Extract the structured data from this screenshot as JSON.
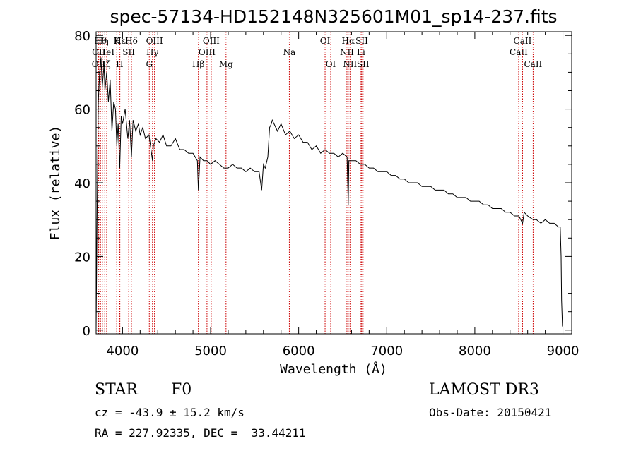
{
  "chart_data": {
    "type": "line",
    "title": "spec-57134-HD152148N325601M01_sp14-237.fits",
    "xlabel": "Wavelength (Å)",
    "ylabel": "Flux (relative)",
    "xlim": [
      3700,
      9100
    ],
    "ylim": [
      -1,
      81
    ],
    "xticks": [
      4000,
      5000,
      6000,
      7000,
      8000,
      9000
    ],
    "yticks": [
      0,
      20,
      40,
      60,
      80
    ],
    "grid": false,
    "series": [
      {
        "x": [
          3700,
          3710,
          3725,
          3740,
          3755,
          3770,
          3790,
          3800,
          3820,
          3840,
          3860,
          3880,
          3900,
          3920,
          3935,
          3950,
          3968,
          3985,
          4000,
          4030,
          4060,
          4080,
          4101,
          4120,
          4150,
          4180,
          4200,
          4230,
          4260,
          4300,
          4340,
          4350,
          4380,
          4420,
          4460,
          4500,
          4550,
          4600,
          4650,
          4700,
          4750,
          4800,
          4850,
          4861,
          4880,
          4920,
          4960,
          5000,
          5050,
          5100,
          5150,
          5200,
          5250,
          5300,
          5350,
          5400,
          5450,
          5500,
          5550,
          5580,
          5600,
          5620,
          5650,
          5670,
          5690,
          5700,
          5720,
          5760,
          5800,
          5850,
          5900,
          5950,
          6000,
          6050,
          6100,
          6150,
          6200,
          6250,
          6300,
          6350,
          6400,
          6450,
          6500,
          6550,
          6563,
          6570,
          6600,
          6650,
          6700,
          6750,
          6800,
          6850,
          6900,
          6950,
          7000,
          7050,
          7100,
          7150,
          7200,
          7250,
          7300,
          7350,
          7400,
          7450,
          7500,
          7550,
          7600,
          7650,
          7700,
          7750,
          7800,
          7850,
          7900,
          7950,
          8000,
          8050,
          8100,
          8150,
          8200,
          8250,
          8300,
          8350,
          8400,
          8450,
          8500,
          8542,
          8560,
          8600,
          8662,
          8700,
          8750,
          8800,
          8850,
          8900,
          8950,
          8970,
          8980,
          8985,
          8995
        ],
        "values": [
          0,
          28,
          62,
          70,
          74,
          66,
          72,
          65,
          70,
          62,
          68,
          54,
          62,
          60,
          50,
          56,
          44,
          58,
          56,
          60,
          52,
          57,
          47,
          57,
          54,
          56,
          53,
          55,
          52,
          53,
          46,
          50,
          52,
          51,
          53,
          50,
          50,
          52,
          49,
          49,
          48,
          48,
          46,
          38,
          47,
          46,
          46,
          45,
          46,
          45,
          44,
          44,
          45,
          44,
          44,
          43,
          44,
          43,
          43,
          38,
          45,
          44,
          47,
          55,
          56,
          57,
          56,
          54,
          56,
          53,
          54,
          52,
          53,
          51,
          51,
          49,
          50,
          48,
          49,
          48,
          48,
          47,
          48,
          47,
          34,
          46,
          46,
          46,
          45,
          45,
          44,
          44,
          43,
          43,
          43,
          42,
          42,
          41,
          41,
          40,
          40,
          40,
          39,
          39,
          39,
          38,
          38,
          38,
          37,
          37,
          36,
          36,
          36,
          35,
          35,
          35,
          34,
          34,
          33,
          33,
          33,
          32,
          32,
          31,
          31,
          29,
          32,
          31,
          30,
          30,
          29,
          30,
          29,
          29,
          28,
          28,
          20,
          8,
          1
        ]
      }
    ],
    "lines": [
      {
        "name": "OII",
        "x": 3727,
        "row": 3
      },
      {
        "name": "OII",
        "x": 3730,
        "row": 2
      },
      {
        "name": "Hθ",
        "x": 3750,
        "row": 1
      },
      {
        "name": "Hη",
        "x": 3771,
        "row": 1
      },
      {
        "name": "Hζ",
        "x": 3798,
        "row": 3
      },
      {
        "name": "HeI",
        "x": 3820,
        "row": 2
      },
      {
        "name": "K",
        "x": 3934,
        "row": 1
      },
      {
        "name": "SII",
        "x": 4070,
        "row": 2
      },
      {
        "name": "H",
        "x": 3968,
        "row": 3
      },
      {
        "name": "Hε",
        "x": 3970,
        "row": 1
      },
      {
        "name": "Hδ",
        "x": 4101,
        "row": 1
      },
      {
        "name": "G",
        "x": 4304,
        "row": 3
      },
      {
        "name": "Hγ",
        "x": 4340,
        "row": 2
      },
      {
        "name": "OIII",
        "x": 4363,
        "row": 1
      },
      {
        "name": "Hβ",
        "x": 4861,
        "row": 3
      },
      {
        "name": "OIII",
        "x": 4959,
        "row": 2
      },
      {
        "name": "OIII",
        "x": 5007,
        "row": 1
      },
      {
        "name": "Mg",
        "x": 5175,
        "row": 3
      },
      {
        "name": "Na",
        "x": 5894,
        "row": 2
      },
      {
        "name": "OI",
        "x": 6300,
        "row": 1
      },
      {
        "name": "OI",
        "x": 6364,
        "row": 3
      },
      {
        "name": "NII",
        "x": 6548,
        "row": 2
      },
      {
        "name": "Hα",
        "x": 6563,
        "row": 1
      },
      {
        "name": "NII",
        "x": 6583,
        "row": 3
      },
      {
        "name": "Li",
        "x": 6708,
        "row": 2
      },
      {
        "name": "SII",
        "x": 6717,
        "row": 1
      },
      {
        "name": "SII",
        "x": 6731,
        "row": 3
      },
      {
        "name": "CaII",
        "x": 8498,
        "row": 2
      },
      {
        "name": "CaII",
        "x": 8542,
        "row": 1
      },
      {
        "name": "CaII",
        "x": 8662,
        "row": 3
      }
    ]
  },
  "info": {
    "object_class": "STAR",
    "subclass": "F0",
    "survey": "LAMOST DR3",
    "redshift": "cz = -43.9 ± 15.2 km/s",
    "obs_date": "Obs-Date: 20150421",
    "coords": "RA = 227.92335, DEC =  33.44211"
  }
}
